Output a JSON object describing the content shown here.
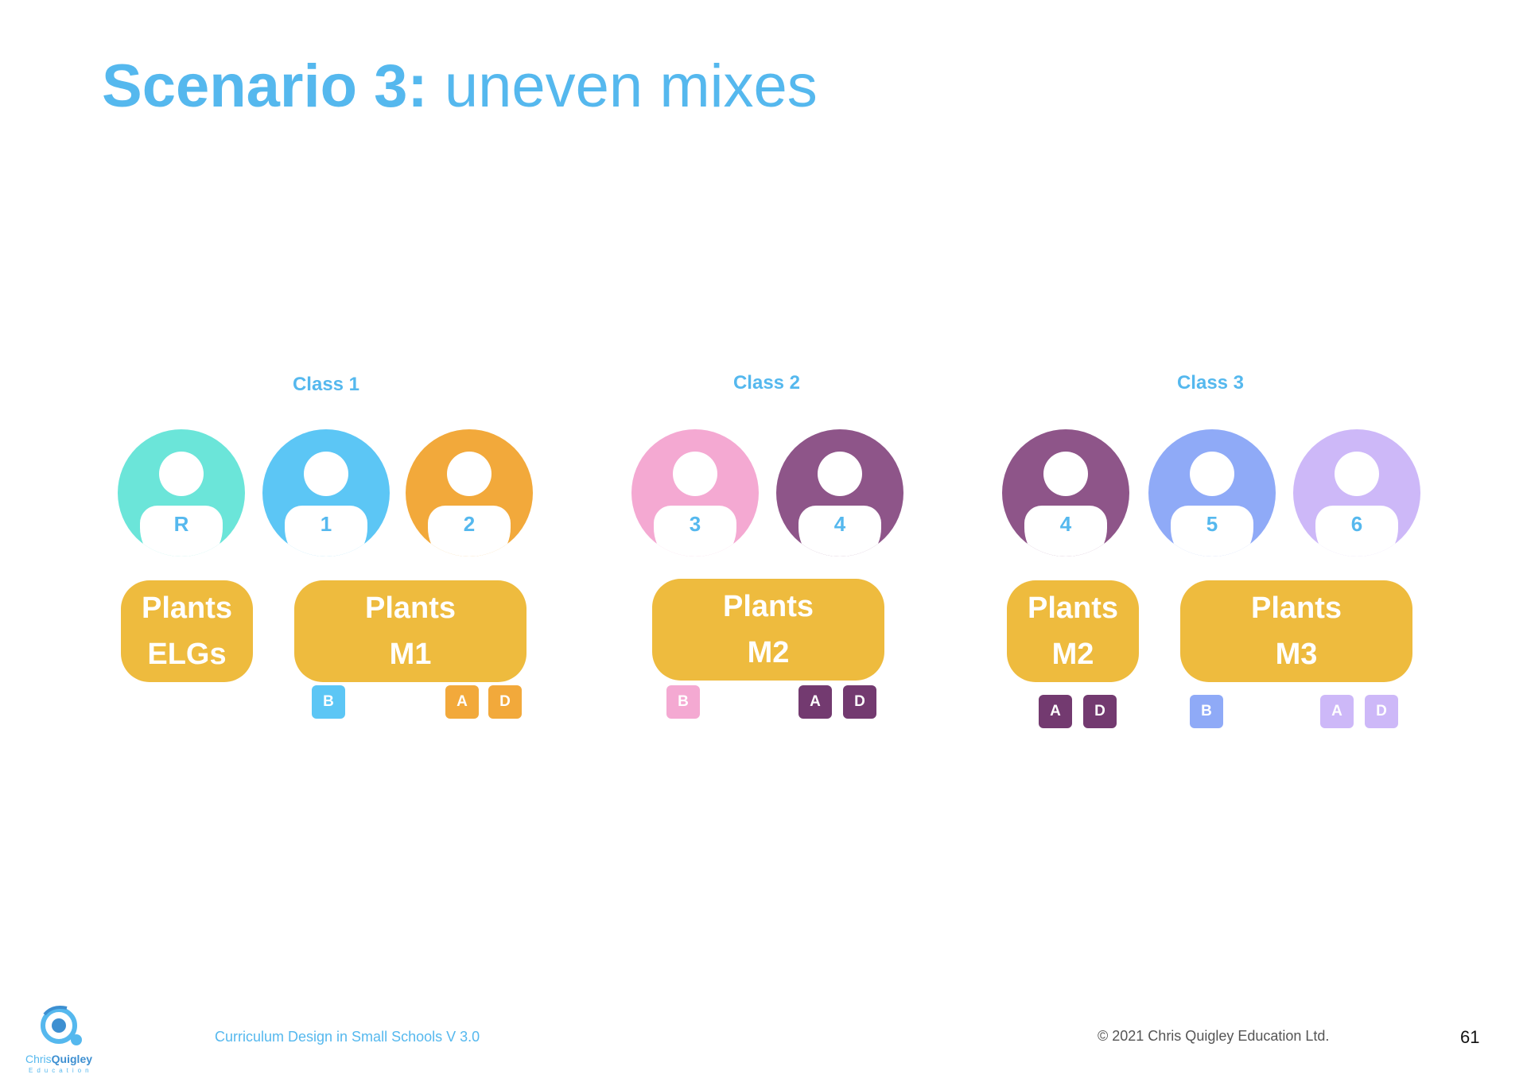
{
  "title": {
    "bold": "Scenario 3:",
    "rest": "uneven mixes"
  },
  "classes": [
    {
      "label": "Class 1",
      "pupils": [
        "R",
        "1",
        "2"
      ],
      "topics": [
        {
          "l1": "Plants",
          "l2": "ELGs"
        },
        {
          "l1": "Plants",
          "l2": "M1"
        }
      ],
      "tags": [
        "B",
        "A",
        "D"
      ]
    },
    {
      "label": "Class 2",
      "pupils": [
        "3",
        "4"
      ],
      "topics": [
        {
          "l1": "Plants",
          "l2": "M2"
        }
      ],
      "tags": [
        "B",
        "A",
        "D"
      ]
    },
    {
      "label": "Class 3",
      "pupils": [
        "4",
        "5",
        "6"
      ],
      "topics": [
        {
          "l1": "Plants",
          "l2": "M2"
        },
        {
          "l1": "Plants",
          "l2": "M3"
        }
      ],
      "tags": [
        "A",
        "D",
        "B",
        "A",
        "D"
      ]
    }
  ],
  "colors": {
    "reception": "#6be5d9",
    "year1": "#5cc6f5",
    "year2": "#f2a93b",
    "year3": "#f4a9d2",
    "year4": "#8e5589",
    "year5": "#8faaf7",
    "year6": "#cdb8f8",
    "topic": "#eebb3e",
    "tag_dark": "#733a70",
    "accent": "#55b8ee"
  },
  "footer": {
    "text": "Curriculum Design in Small Schools V 3.0",
    "copyright": "© 2021 Chris Quigley Education Ltd.",
    "page": "61",
    "logo_name_1": "Chris",
    "logo_name_2": "Quigley",
    "logo_sub": "Education"
  }
}
